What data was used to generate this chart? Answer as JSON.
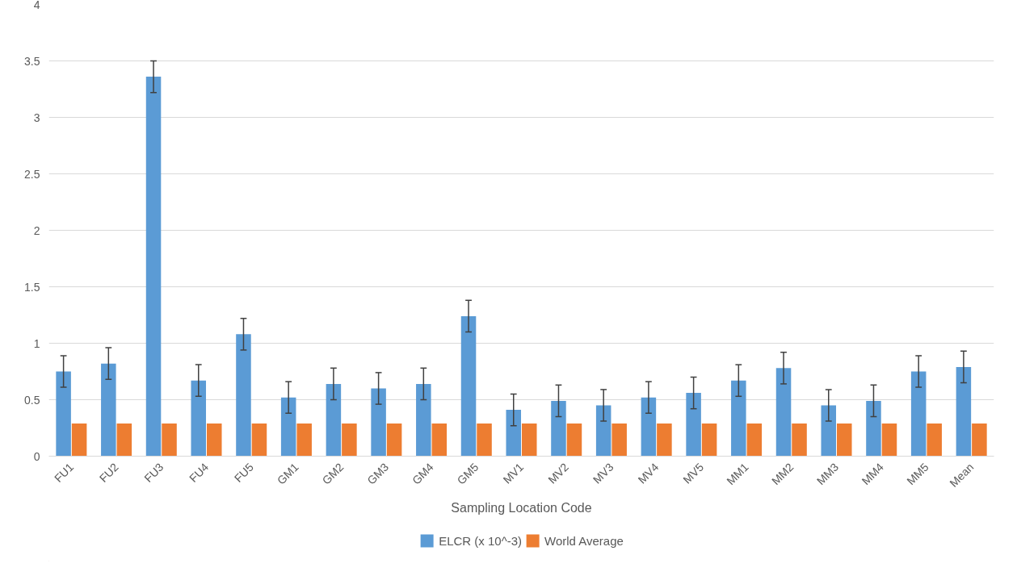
{
  "chart_data": {
    "type": "bar",
    "xlabel": "Sampling Location Code",
    "categories": [
      "FU1",
      "FU2",
      "FU3",
      "FU4",
      "FU5",
      "GM1",
      "GM2",
      "GM3",
      "GM4",
      "GM5",
      "MV1",
      "MV2",
      "MV3",
      "MV4",
      "MV5",
      "MM1",
      "MM2",
      "MM3",
      "MM4",
      "MM5",
      "Mean"
    ],
    "series": [
      {
        "name": "ELCR (x 10^-3)",
        "color": "#5b9bd5",
        "values": [
          0.75,
          0.82,
          3.36,
          0.67,
          1.08,
          0.52,
          0.64,
          0.6,
          0.64,
          1.24,
          0.41,
          0.49,
          0.45,
          0.52,
          0.56,
          0.67,
          0.78,
          0.45,
          0.49,
          0.75,
          0.79
        ],
        "errors": [
          0.14,
          0.14,
          0.14,
          0.14,
          0.14,
          0.14,
          0.14,
          0.14,
          0.14,
          0.14,
          0.14,
          0.14,
          0.14,
          0.14,
          0.14,
          0.14,
          0.14,
          0.14,
          0.14,
          0.14,
          0.14
        ]
      },
      {
        "name": "World Average",
        "color": "#ed7d31",
        "values": [
          0.29,
          0.29,
          0.29,
          0.29,
          0.29,
          0.29,
          0.29,
          0.29,
          0.29,
          0.29,
          0.29,
          0.29,
          0.29,
          0.29,
          0.29,
          0.29,
          0.29,
          0.29,
          0.29,
          0.29,
          0.29
        ]
      }
    ],
    "ylim": [
      0,
      4
    ],
    "yticks": [
      0,
      0.5,
      1,
      1.5,
      2,
      2.5,
      3,
      3.5,
      4
    ],
    "grid": "y",
    "legend": "bottom"
  }
}
